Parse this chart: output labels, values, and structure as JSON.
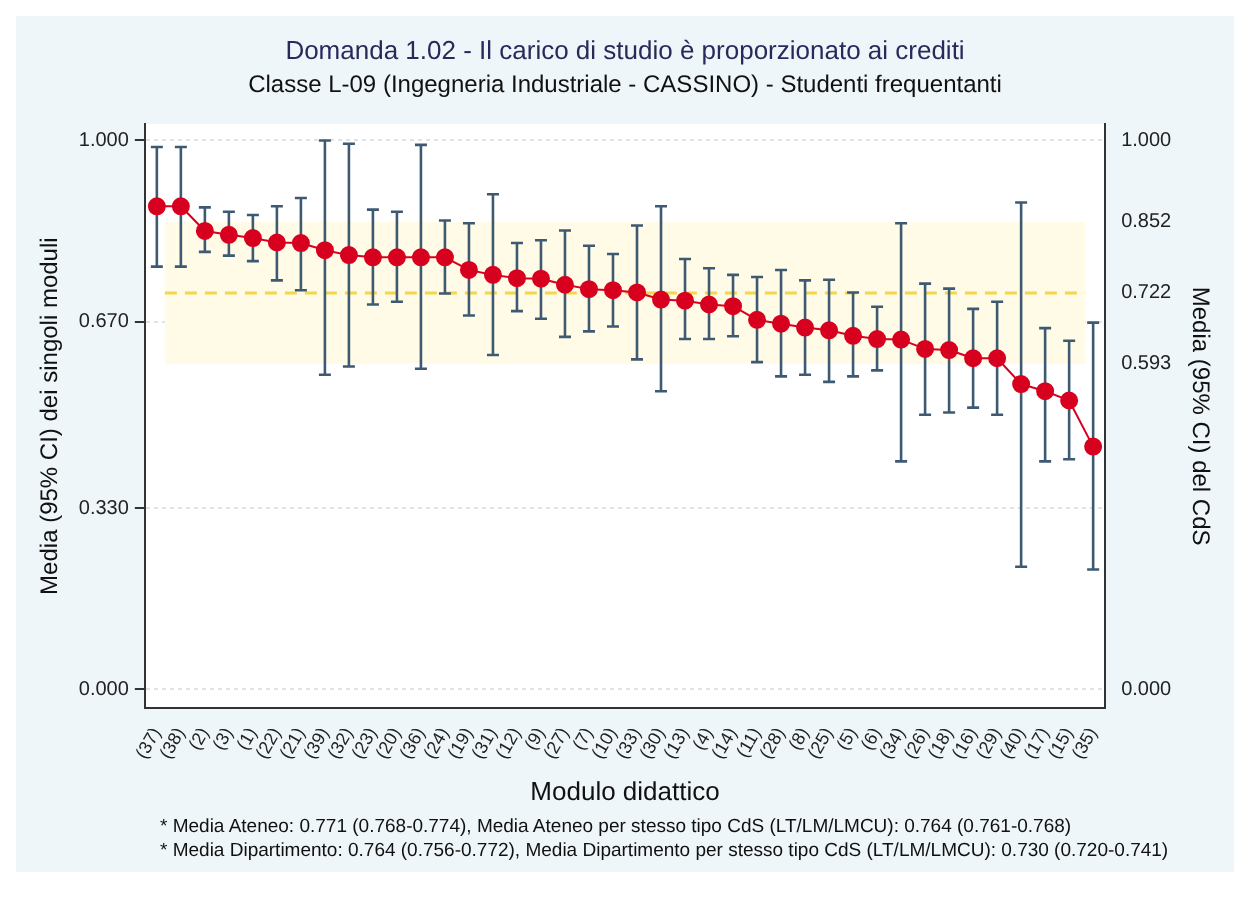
{
  "chart_data": {
    "type": "line",
    "title": "Domanda 1.02 - Il carico di studio è proporzionato ai crediti",
    "subtitle": "Classe L-09 (Ingegneria Industriale - CASSINO) - Studenti frequentanti",
    "xlabel": "Modulo didattico",
    "ylabel": "Media (95% CI) dei singoli moduli",
    "y2label": "Media (95% CI) del CdS",
    "categories": [
      "(37)",
      "(38)",
      "(2)",
      "(3)",
      "(1)",
      "(22)",
      "(21)",
      "(39)",
      "(32)",
      "(23)",
      "(20)",
      "(36)",
      "(24)",
      "(19)",
      "(31)",
      "(12)",
      "(9)",
      "(27)",
      "(7)",
      "(10)",
      "(33)",
      "(30)",
      "(13)",
      "(4)",
      "(14)",
      "(11)",
      "(28)",
      "(8)",
      "(25)",
      "(5)",
      "(6)",
      "(34)",
      "(26)",
      "(18)",
      "(16)",
      "(29)",
      "(40)",
      "(17)",
      "(15)",
      "(35)"
    ],
    "series": [
      {
        "color": "#d7001f",
        "values": [
          0.88,
          0.88,
          0.835,
          0.828,
          0.822,
          0.814,
          0.813,
          0.8,
          0.791,
          0.787,
          0.787,
          0.787,
          0.787,
          0.764,
          0.755,
          0.749,
          0.748,
          0.737,
          0.729,
          0.727,
          0.723,
          0.71,
          0.708,
          0.701,
          0.698,
          0.673,
          0.666,
          0.659,
          0.654,
          0.644,
          0.638,
          0.637,
          0.62,
          0.618,
          0.603,
          0.603,
          0.556,
          0.543,
          0.526,
          0.442
        ],
        "errors": [
          [
            0.77,
            0.988
          ],
          [
            0.77,
            0.988
          ],
          [
            0.797,
            0.878
          ],
          [
            0.79,
            0.87
          ],
          [
            0.78,
            0.864
          ],
          [
            0.745,
            0.88
          ],
          [
            0.727,
            0.895
          ],
          [
            0.573,
            1.0
          ],
          [
            0.588,
            0.994
          ],
          [
            0.701,
            0.874
          ],
          [
            0.706,
            0.87
          ],
          [
            0.584,
            0.992
          ],
          [
            0.721,
            0.854
          ],
          [
            0.681,
            0.849
          ],
          [
            0.609,
            0.902
          ],
          [
            0.689,
            0.813
          ],
          [
            0.675,
            0.818
          ],
          [
            0.642,
            0.836
          ],
          [
            0.652,
            0.808
          ],
          [
            0.661,
            0.793
          ],
          [
            0.601,
            0.845
          ],
          [
            0.543,
            0.88
          ],
          [
            0.638,
            0.784
          ],
          [
            0.638,
            0.767
          ],
          [
            0.643,
            0.755
          ],
          [
            0.596,
            0.751
          ],
          [
            0.57,
            0.764
          ],
          [
            0.573,
            0.745
          ],
          [
            0.56,
            0.746
          ],
          [
            0.57,
            0.723
          ],
          [
            0.581,
            0.697
          ],
          [
            0.415,
            0.849
          ],
          [
            0.5,
            0.739
          ],
          [
            0.504,
            0.73
          ],
          [
            0.513,
            0.693
          ],
          [
            0.5,
            0.706
          ],
          [
            0.223,
            0.887
          ],
          [
            0.415,
            0.658
          ],
          [
            0.419,
            0.635
          ],
          [
            0.218,
            0.668
          ]
        ]
      }
    ],
    "ylim": [
      -0.035,
      1.03
    ],
    "yticks": [
      {
        "value": 0,
        "label": "0.000"
      },
      {
        "value": 0.33,
        "label": "0.330"
      },
      {
        "value": 0.67,
        "label": "0.670"
      },
      {
        "value": 1,
        "label": "1.000"
      }
    ],
    "y2lim": [
      -0.035,
      1.03
    ],
    "y2ticks": [
      {
        "value": 0,
        "label": "0.000"
      },
      {
        "value": 0.593,
        "label": "0.593"
      },
      {
        "value": 0.722,
        "label": "0.722"
      },
      {
        "value": 0.852,
        "label": "0.852"
      },
      {
        "value": 1,
        "label": "1.000"
      }
    ],
    "ref_lines": [
      {
        "axis": "y",
        "value": 0.722,
        "color": "#f2d64b",
        "line_style": "dashed"
      }
    ],
    "bands": [
      {
        "axis": "y",
        "from": 0.593,
        "to": 0.852,
        "color": "#fffbe6"
      }
    ],
    "grid": "y",
    "legend": false,
    "marker": "circle",
    "line_style": "solid",
    "annotations": [
      "* Media Ateneo: 0.771 (0.768-0.774),  Media Ateneo per stesso tipo CdS (LT/LM/LMCU): 0.764 (0.761-0.768)",
      "* Media Dipartimento: 0.764 (0.756-0.772), Media Dipartimento per stesso tipo CdS (LT/LM/LMCU): 0.730 (0.720-0.741)"
    ]
  }
}
